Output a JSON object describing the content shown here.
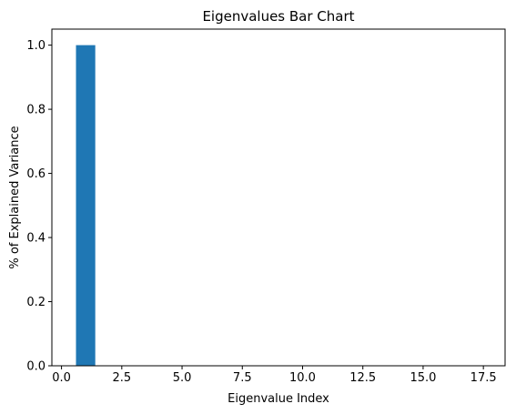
{
  "chart_data": {
    "type": "bar",
    "title": "Eigenvalues Bar Chart",
    "xlabel": "Eigenvalue Index",
    "ylabel": "% of Explained Variance",
    "x": [
      1,
      2,
      3,
      4,
      5,
      6,
      7,
      8,
      9,
      10,
      11,
      12,
      13,
      14,
      15,
      16,
      17
    ],
    "values": [
      1.0,
      0,
      0,
      0,
      0,
      0,
      0,
      0,
      0,
      0,
      0,
      0,
      0,
      0,
      0,
      0,
      0
    ],
    "bar_width": 0.8,
    "xlim": [
      -0.4,
      18.4
    ],
    "ylim": [
      0,
      1.05
    ],
    "xticks": [
      0.0,
      2.5,
      5.0,
      7.5,
      10.0,
      12.5,
      15.0,
      17.5
    ],
    "xtick_labels": [
      "0.0",
      "2.5",
      "5.0",
      "7.5",
      "10.0",
      "12.5",
      "15.0",
      "17.5"
    ],
    "yticks": [
      0.0,
      0.2,
      0.4,
      0.6,
      0.8,
      1.0
    ],
    "ytick_labels": [
      "0.0",
      "0.2",
      "0.4",
      "0.6",
      "0.8",
      "1.0"
    ],
    "grid": false,
    "legend": "none",
    "bar_color": "#1f77b4"
  }
}
